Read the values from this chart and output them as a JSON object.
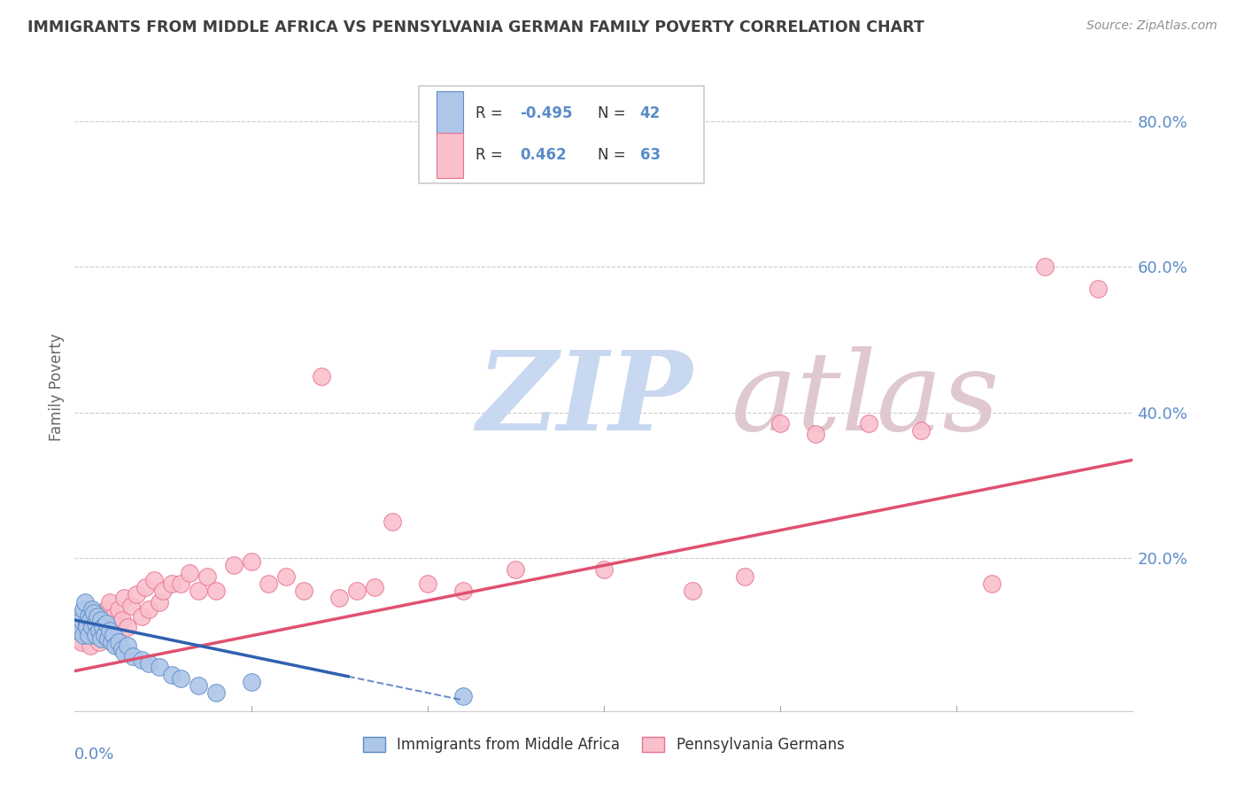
{
  "title": "IMMIGRANTS FROM MIDDLE AFRICA VS PENNSYLVANIA GERMAN FAMILY POVERTY CORRELATION CHART",
  "source": "Source: ZipAtlas.com",
  "ylabel": "Family Poverty",
  "yticks": [
    0.0,
    0.2,
    0.4,
    0.6,
    0.8
  ],
  "ytick_labels": [
    "",
    "20.0%",
    "40.0%",
    "60.0%",
    "80.0%"
  ],
  "xlim": [
    0.0,
    0.6
  ],
  "ylim": [
    -0.01,
    0.88
  ],
  "blue_r": -0.495,
  "blue_n": 42,
  "pink_r": 0.462,
  "pink_n": 63,
  "blue_fill_color": "#aec6e8",
  "blue_edge_color": "#5b8cc8",
  "pink_fill_color": "#f9c0cc",
  "pink_edge_color": "#e87090",
  "blue_line_color": "#3060b0",
  "pink_line_color": "#e05070",
  "title_color": "#404040",
  "source_color": "#909090",
  "axis_label_color": "#5b8cc8",
  "watermark_zip_color": "#c8d8f0",
  "watermark_atlas_color": "#e0c8d0",
  "blue_scatter_x": [
    0.002,
    0.003,
    0.004,
    0.005,
    0.005,
    0.006,
    0.007,
    0.007,
    0.008,
    0.008,
    0.009,
    0.01,
    0.01,
    0.011,
    0.012,
    0.012,
    0.013,
    0.014,
    0.015,
    0.015,
    0.016,
    0.017,
    0.018,
    0.019,
    0.02,
    0.021,
    0.022,
    0.023,
    0.025,
    0.027,
    0.028,
    0.03,
    0.033,
    0.038,
    0.042,
    0.048,
    0.055,
    0.06,
    0.07,
    0.08,
    0.1,
    0.22
  ],
  "blue_scatter_y": [
    0.1,
    0.12,
    0.115,
    0.13,
    0.095,
    0.14,
    0.11,
    0.105,
    0.12,
    0.095,
    0.115,
    0.13,
    0.105,
    0.125,
    0.11,
    0.095,
    0.12,
    0.1,
    0.115,
    0.09,
    0.105,
    0.095,
    0.11,
    0.09,
    0.1,
    0.085,
    0.095,
    0.08,
    0.085,
    0.075,
    0.07,
    0.08,
    0.065,
    0.06,
    0.055,
    0.05,
    0.04,
    0.035,
    0.025,
    0.015,
    0.03,
    0.01
  ],
  "pink_scatter_x": [
    0.002,
    0.003,
    0.004,
    0.005,
    0.006,
    0.007,
    0.008,
    0.009,
    0.01,
    0.011,
    0.012,
    0.013,
    0.014,
    0.015,
    0.016,
    0.017,
    0.018,
    0.019,
    0.02,
    0.021,
    0.022,
    0.023,
    0.025,
    0.027,
    0.028,
    0.03,
    0.032,
    0.035,
    0.038,
    0.04,
    0.042,
    0.045,
    0.048,
    0.05,
    0.055,
    0.06,
    0.065,
    0.07,
    0.075,
    0.08,
    0.09,
    0.1,
    0.11,
    0.12,
    0.13,
    0.14,
    0.15,
    0.16,
    0.17,
    0.18,
    0.2,
    0.22,
    0.25,
    0.3,
    0.35,
    0.38,
    0.4,
    0.42,
    0.45,
    0.48,
    0.52,
    0.55,
    0.58
  ],
  "pink_scatter_y": [
    0.09,
    0.105,
    0.085,
    0.1,
    0.115,
    0.095,
    0.11,
    0.08,
    0.12,
    0.095,
    0.105,
    0.115,
    0.085,
    0.11,
    0.125,
    0.095,
    0.13,
    0.1,
    0.14,
    0.11,
    0.12,
    0.095,
    0.13,
    0.115,
    0.145,
    0.105,
    0.135,
    0.15,
    0.12,
    0.16,
    0.13,
    0.17,
    0.14,
    0.155,
    0.165,
    0.165,
    0.18,
    0.155,
    0.175,
    0.155,
    0.19,
    0.195,
    0.165,
    0.175,
    0.155,
    0.45,
    0.145,
    0.155,
    0.16,
    0.25,
    0.165,
    0.155,
    0.185,
    0.185,
    0.155,
    0.175,
    0.385,
    0.37,
    0.385,
    0.375,
    0.165,
    0.6,
    0.57
  ],
  "pink_line_x0": 0.0,
  "pink_line_y0": 0.045,
  "pink_line_x1": 0.6,
  "pink_line_y1": 0.335,
  "blue_line_x0": 0.0,
  "blue_line_y0": 0.115,
  "blue_line_x1": 0.22,
  "blue_line_y1": 0.005
}
